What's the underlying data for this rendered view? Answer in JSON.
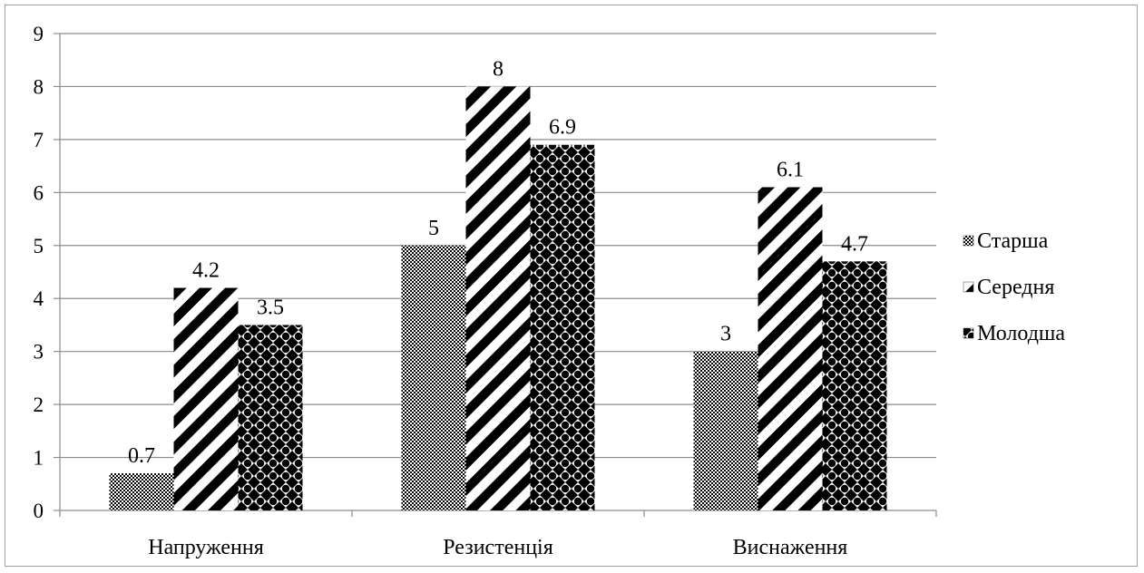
{
  "chart_data": {
    "type": "bar",
    "categories": [
      "Напруження",
      "Резистенція",
      "Виснаження"
    ],
    "series": [
      {
        "name": "Старша",
        "values": [
          0.7,
          5,
          3
        ],
        "pattern": "checker"
      },
      {
        "name": "Середня",
        "values": [
          4.2,
          8,
          6.1
        ],
        "pattern": "diagonal"
      },
      {
        "name": "Молодша",
        "values": [
          3.5,
          6.9,
          4.7
        ],
        "pattern": "dots"
      }
    ],
    "data_labels": [
      [
        "0.7",
        "5",
        "3"
      ],
      [
        "4.2",
        "8",
        "6.1"
      ],
      [
        "3.5",
        "6.9",
        "4.7"
      ]
    ],
    "yticks": [
      "0",
      "1",
      "2",
      "3",
      "4",
      "5",
      "6",
      "7",
      "8",
      "9"
    ],
    "ylim": [
      0,
      9
    ],
    "grid": true,
    "legend_position": "right",
    "title": "",
    "xlabel": "",
    "ylabel": ""
  }
}
